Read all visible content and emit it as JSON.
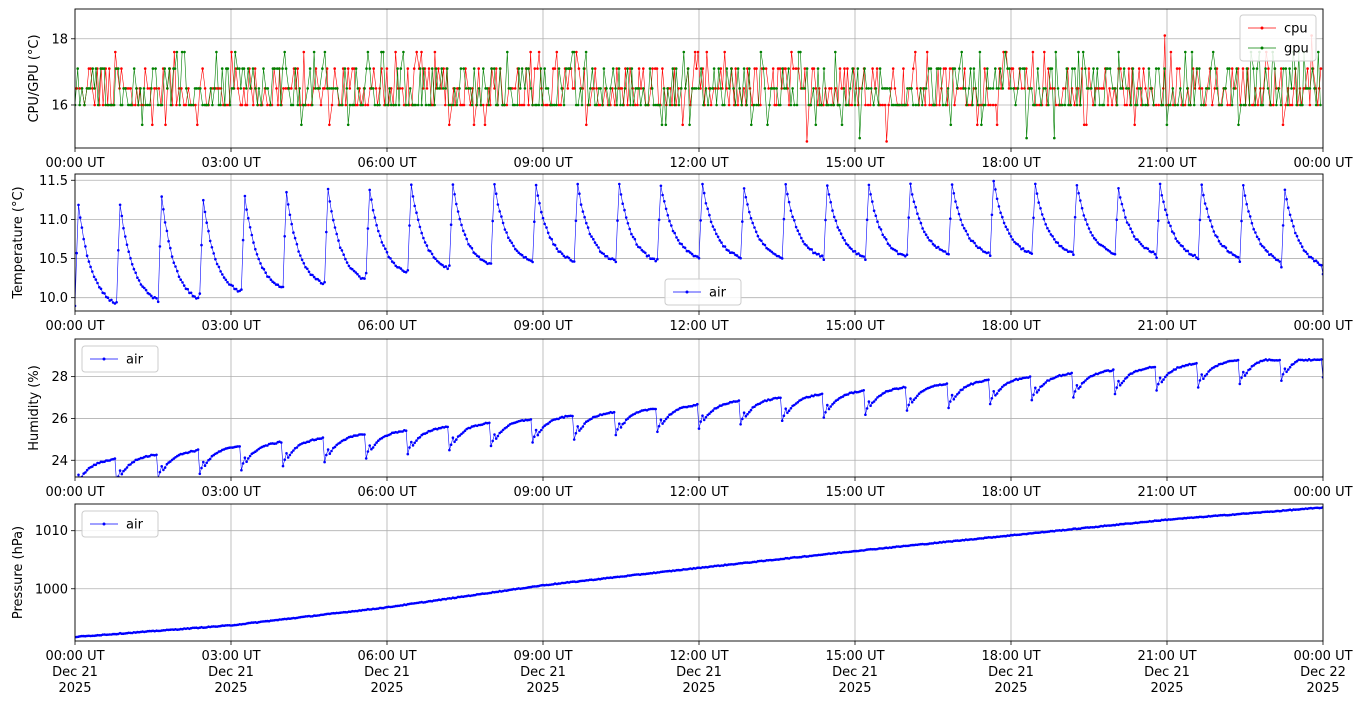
{
  "chart_data": [
    {
      "type": "line",
      "ylabel": "CPU/GPU (°C)",
      "ylim": [
        14.7,
        18.9
      ],
      "yticks": [
        16,
        18
      ],
      "xlim": [
        "00:00",
        "24:00"
      ],
      "xtick_labels": [
        "00:00 UT",
        "03:00 UT",
        "06:00 UT",
        "09:00 UT",
        "12:00 UT",
        "15:00 UT",
        "18:00 UT",
        "21:00 UT",
        "00:00 UT"
      ],
      "grid": true,
      "legend": "top-right",
      "series": [
        {
          "name": "cpu",
          "color": "#ff0000",
          "level_values": [
            15.4,
            16.0,
            16.5,
            17.1,
            17.6
          ],
          "outlier_values": [
            14.9,
            18.1
          ],
          "base_level": 16.5
        },
        {
          "name": "gpu",
          "color": "#008000",
          "level_values": [
            15.4,
            16.0,
            16.5,
            17.1,
            17.6
          ],
          "outlier_values": [
            15.0,
            18.2,
            18.7
          ],
          "base_level": 16.0
        }
      ]
    },
    {
      "type": "line",
      "ylabel": "Temperature (°C)",
      "ylim": [
        9.83,
        11.58
      ],
      "yticks": [
        10.0,
        10.5,
        11.0,
        11.5
      ],
      "ytick_labels": [
        "10.0",
        "10.5",
        "11.0",
        "11.5"
      ],
      "xtick_labels": [
        "00:00 UT",
        "03:00 UT",
        "06:00 UT",
        "09:00 UT",
        "12:00 UT",
        "15:00 UT",
        "18:00 UT",
        "21:00 UT",
        "00:00 UT"
      ],
      "grid": true,
      "legend": "lower-center",
      "series": [
        {
          "name": "air",
          "color": "#0000ff"
        }
      ],
      "cycle_period_min": 48,
      "cycle_minima": [
        9.9,
        9.95,
        9.95,
        10.05,
        10.1,
        10.15,
        10.2,
        10.3,
        10.35,
        10.4,
        10.45,
        10.45,
        10.45,
        10.45,
        10.5,
        10.5,
        10.5,
        10.5,
        10.5,
        10.5,
        10.55,
        10.55,
        10.55,
        10.55,
        10.55,
        10.55,
        10.5,
        10.5,
        10.45,
        10.4,
        10.3
      ],
      "cycle_maxima": [
        11.2,
        11.2,
        11.3,
        11.25,
        11.3,
        11.35,
        11.4,
        11.4,
        11.45,
        11.45,
        11.45,
        11.45,
        11.45,
        11.45,
        11.45,
        11.45,
        11.4,
        11.45,
        11.45,
        11.45,
        11.45,
        11.45,
        11.5,
        11.45,
        11.45,
        11.4,
        11.45,
        11.45,
        11.45,
        11.4,
        11.3
      ]
    },
    {
      "type": "line",
      "ylabel": "Humidity (%)",
      "ylim": [
        23.2,
        29.8
      ],
      "yticks": [
        24,
        26,
        28
      ],
      "xtick_labels": [
        "00:00 UT",
        "03:00 UT",
        "06:00 UT",
        "09:00 UT",
        "12:00 UT",
        "15:00 UT",
        "18:00 UT",
        "21:00 UT",
        "00:00 UT"
      ],
      "grid": true,
      "legend": "top-left",
      "series": [
        {
          "name": "air",
          "color": "#0000ff"
        }
      ],
      "start_value": 23.5,
      "end_value": 28.2,
      "peak_value": 29.5
    },
    {
      "type": "line",
      "ylabel": "Pressure (hPa)",
      "ylim": [
        991.0,
        1014.6
      ],
      "yticks": [
        1000,
        1010
      ],
      "x_dates": [
        "Dec 21\n2025",
        "Dec 21\n2025",
        "Dec 21\n2025",
        "Dec 21\n2025",
        "Dec 21\n2025",
        "Dec 21\n2025",
        "Dec 21\n2025",
        "Dec 21\n2025",
        "Dec 22\n2025"
      ],
      "xtick_labels": [
        "00:00 UT",
        "03:00 UT",
        "06:00 UT",
        "09:00 UT",
        "12:00 UT",
        "15:00 UT",
        "18:00 UT",
        "21:00 UT",
        "00:00 UT"
      ],
      "grid": true,
      "legend": "top-left",
      "series": [
        {
          "name": "air",
          "color": "#0000ff"
        }
      ],
      "key_points": [
        {
          "t": "00:00",
          "v": 991.7
        },
        {
          "t": "03:00",
          "v": 993.7
        },
        {
          "t": "06:00",
          "v": 996.8
        },
        {
          "t": "09:00",
          "v": 1000.6
        },
        {
          "t": "12:00",
          "v": 1003.6
        },
        {
          "t": "15:00",
          "v": 1006.5
        },
        {
          "t": "18:00",
          "v": 1009.2
        },
        {
          "t": "21:00",
          "v": 1011.9
        },
        {
          "t": "24:00",
          "v": 1014.0
        }
      ]
    }
  ]
}
